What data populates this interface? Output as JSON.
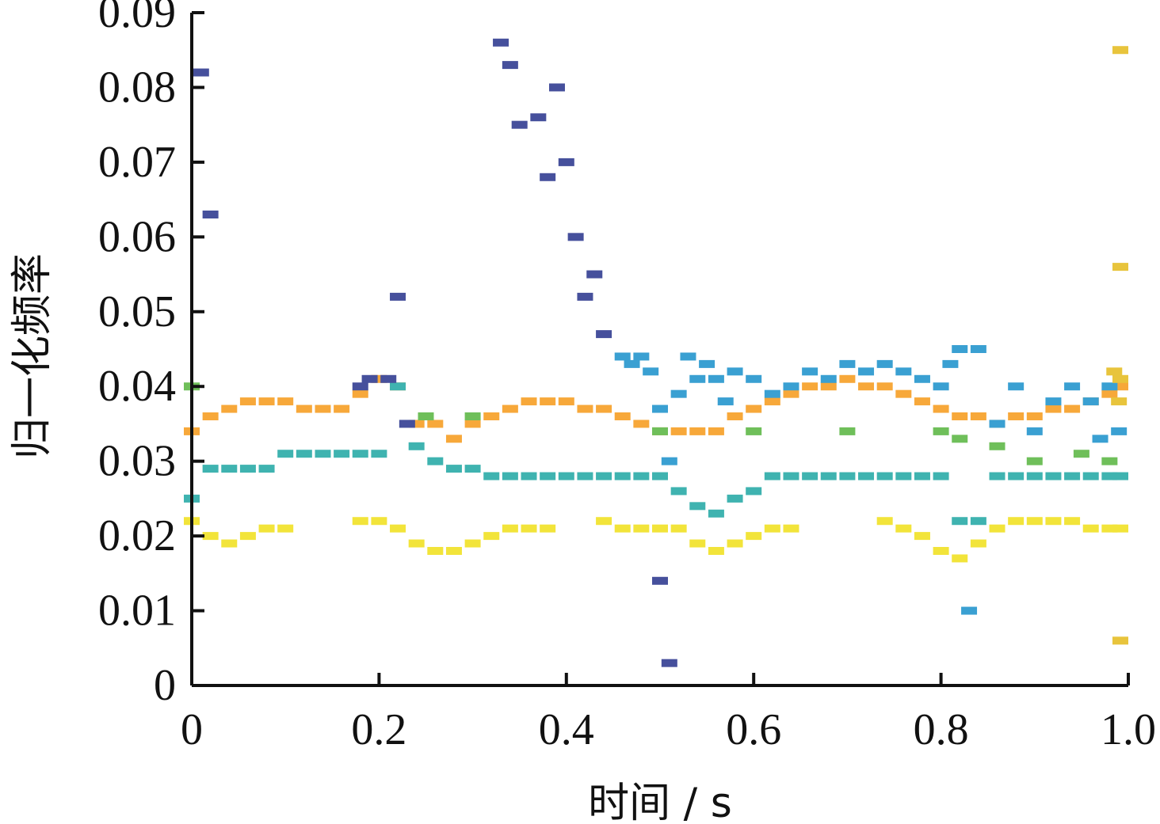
{
  "chart_data": {
    "type": "scatter",
    "title": "",
    "xlabel": "时间 / s",
    "ylabel": "归一化频率",
    "xlim": [
      0,
      1.0
    ],
    "ylim": [
      0,
      0.09
    ],
    "grid": false,
    "legend": "none",
    "x_ticks": [
      {
        "value": 0,
        "label": "0"
      },
      {
        "value": 0.2,
        "label": "0.2"
      },
      {
        "value": 0.4,
        "label": "0.4"
      },
      {
        "value": 0.6,
        "label": "0.6"
      },
      {
        "value": 0.8,
        "label": "0.8"
      },
      {
        "value": 1.0,
        "label": "1.0"
      }
    ],
    "y_ticks": [
      {
        "value": 0,
        "label": "0"
      },
      {
        "value": 0.01,
        "label": "0.01"
      },
      {
        "value": 0.02,
        "label": "0.02"
      },
      {
        "value": 0.03,
        "label": "0.03"
      },
      {
        "value": 0.04,
        "label": "0.04"
      },
      {
        "value": 0.05,
        "label": "0.05"
      },
      {
        "value": 0.06,
        "label": "0.06"
      },
      {
        "value": 0.07,
        "label": "0.07"
      },
      {
        "value": 0.08,
        "label": "0.08"
      },
      {
        "value": 0.09,
        "label": "0.09"
      }
    ],
    "colors": {
      "yellow": "#f2e43a",
      "orange": "#f7a83a",
      "olive": "#b9ae2e",
      "green": "#6fbf5a",
      "teal": "#3fb3b0",
      "blue": "#3aa0d2",
      "navy": "#46509c"
    },
    "series": [
      {
        "color": "#f7a83a",
        "points": [
          [
            0.0,
            0.034
          ],
          [
            0.02,
            0.036
          ],
          [
            0.04,
            0.037
          ],
          [
            0.06,
            0.038
          ],
          [
            0.08,
            0.038
          ],
          [
            0.1,
            0.038
          ],
          [
            0.12,
            0.037
          ],
          [
            0.14,
            0.037
          ],
          [
            0.16,
            0.037
          ],
          [
            0.18,
            0.039
          ],
          [
            0.2,
            0.041
          ],
          [
            0.22,
            0.04
          ],
          [
            0.24,
            0.035
          ],
          [
            0.26,
            0.035
          ],
          [
            0.28,
            0.033
          ],
          [
            0.3,
            0.035
          ],
          [
            0.32,
            0.036
          ],
          [
            0.34,
            0.037
          ],
          [
            0.36,
            0.038
          ],
          [
            0.38,
            0.038
          ],
          [
            0.4,
            0.038
          ],
          [
            0.42,
            0.037
          ],
          [
            0.44,
            0.037
          ],
          [
            0.46,
            0.036
          ],
          [
            0.48,
            0.035
          ],
          [
            0.5,
            0.034
          ],
          [
            0.52,
            0.034
          ],
          [
            0.54,
            0.034
          ],
          [
            0.56,
            0.034
          ],
          [
            0.58,
            0.036
          ],
          [
            0.6,
            0.037
          ],
          [
            0.62,
            0.038
          ],
          [
            0.64,
            0.039
          ],
          [
            0.66,
            0.04
          ],
          [
            0.68,
            0.04
          ],
          [
            0.7,
            0.041
          ],
          [
            0.72,
            0.04
          ],
          [
            0.74,
            0.04
          ],
          [
            0.76,
            0.039
          ],
          [
            0.78,
            0.038
          ],
          [
            0.8,
            0.037
          ],
          [
            0.82,
            0.036
          ],
          [
            0.84,
            0.036
          ],
          [
            0.86,
            0.035
          ],
          [
            0.88,
            0.036
          ],
          [
            0.9,
            0.036
          ],
          [
            0.92,
            0.037
          ],
          [
            0.94,
            0.037
          ],
          [
            0.96,
            0.038
          ],
          [
            0.98,
            0.039
          ],
          [
            1.0,
            0.04
          ]
        ]
      },
      {
        "color": "#3fb3b0",
        "points": [
          [
            0.0,
            0.025
          ],
          [
            0.02,
            0.029
          ],
          [
            0.04,
            0.029
          ],
          [
            0.06,
            0.029
          ],
          [
            0.08,
            0.029
          ],
          [
            0.1,
            0.031
          ],
          [
            0.12,
            0.031
          ],
          [
            0.14,
            0.031
          ],
          [
            0.16,
            0.031
          ],
          [
            0.18,
            0.031
          ],
          [
            0.2,
            0.031
          ],
          [
            0.22,
            0.04
          ],
          [
            0.24,
            0.032
          ],
          [
            0.26,
            0.03
          ],
          [
            0.28,
            0.029
          ],
          [
            0.3,
            0.029
          ],
          [
            0.32,
            0.028
          ],
          [
            0.34,
            0.028
          ],
          [
            0.36,
            0.028
          ],
          [
            0.38,
            0.028
          ],
          [
            0.4,
            0.028
          ],
          [
            0.42,
            0.028
          ],
          [
            0.44,
            0.028
          ],
          [
            0.46,
            0.028
          ],
          [
            0.48,
            0.028
          ],
          [
            0.5,
            0.028
          ],
          [
            0.52,
            0.026
          ],
          [
            0.54,
            0.024
          ],
          [
            0.56,
            0.023
          ],
          [
            0.58,
            0.025
          ],
          [
            0.6,
            0.026
          ],
          [
            0.62,
            0.028
          ],
          [
            0.64,
            0.028
          ],
          [
            0.66,
            0.028
          ],
          [
            0.68,
            0.028
          ],
          [
            0.7,
            0.028
          ],
          [
            0.72,
            0.028
          ],
          [
            0.74,
            0.028
          ],
          [
            0.76,
            0.028
          ],
          [
            0.78,
            0.028
          ],
          [
            0.8,
            0.028
          ],
          [
            0.82,
            0.022
          ],
          [
            0.84,
            0.022
          ],
          [
            0.86,
            0.028
          ],
          [
            0.88,
            0.028
          ],
          [
            0.9,
            0.028
          ],
          [
            0.92,
            0.028
          ],
          [
            0.94,
            0.028
          ],
          [
            0.96,
            0.028
          ],
          [
            0.98,
            0.028
          ],
          [
            1.0,
            0.028
          ]
        ]
      },
      {
        "color": "#f2e43a",
        "points": [
          [
            0.0,
            0.022
          ],
          [
            0.02,
            0.02
          ],
          [
            0.04,
            0.019
          ],
          [
            0.06,
            0.02
          ],
          [
            0.08,
            0.021
          ],
          [
            0.1,
            0.021
          ],
          [
            0.18,
            0.022
          ],
          [
            0.2,
            0.022
          ],
          [
            0.22,
            0.021
          ],
          [
            0.24,
            0.019
          ],
          [
            0.26,
            0.018
          ],
          [
            0.28,
            0.018
          ],
          [
            0.3,
            0.019
          ],
          [
            0.32,
            0.02
          ],
          [
            0.34,
            0.021
          ],
          [
            0.36,
            0.021
          ],
          [
            0.38,
            0.021
          ],
          [
            0.44,
            0.022
          ],
          [
            0.46,
            0.021
          ],
          [
            0.48,
            0.021
          ],
          [
            0.5,
            0.021
          ],
          [
            0.52,
            0.021
          ],
          [
            0.54,
            0.019
          ],
          [
            0.56,
            0.018
          ],
          [
            0.58,
            0.019
          ],
          [
            0.6,
            0.02
          ],
          [
            0.62,
            0.021
          ],
          [
            0.64,
            0.021
          ],
          [
            0.74,
            0.022
          ],
          [
            0.76,
            0.021
          ],
          [
            0.78,
            0.02
          ],
          [
            0.8,
            0.018
          ],
          [
            0.82,
            0.017
          ],
          [
            0.84,
            0.019
          ],
          [
            0.86,
            0.021
          ],
          [
            0.88,
            0.022
          ],
          [
            0.9,
            0.022
          ],
          [
            0.92,
            0.022
          ],
          [
            0.94,
            0.022
          ],
          [
            0.96,
            0.021
          ],
          [
            0.98,
            0.021
          ],
          [
            1.0,
            0.021
          ]
        ]
      },
      {
        "color": "#6fbf5a",
        "points": [
          [
            0.0,
            0.04
          ],
          [
            0.25,
            0.036
          ],
          [
            0.3,
            0.036
          ],
          [
            0.5,
            0.034
          ],
          [
            0.6,
            0.034
          ],
          [
            0.7,
            0.034
          ],
          [
            0.8,
            0.034
          ],
          [
            0.82,
            0.033
          ],
          [
            0.86,
            0.032
          ],
          [
            0.9,
            0.03
          ],
          [
            0.95,
            0.031
          ],
          [
            0.98,
            0.03
          ]
        ]
      },
      {
        "color": "#46509c",
        "points": [
          [
            0.01,
            0.082
          ],
          [
            0.02,
            0.063
          ],
          [
            0.18,
            0.04
          ],
          [
            0.19,
            0.041
          ],
          [
            0.21,
            0.041
          ],
          [
            0.22,
            0.052
          ],
          [
            0.23,
            0.035
          ],
          [
            0.33,
            0.086
          ],
          [
            0.34,
            0.083
          ],
          [
            0.35,
            0.075
          ],
          [
            0.37,
            0.076
          ],
          [
            0.38,
            0.068
          ],
          [
            0.39,
            0.08
          ],
          [
            0.4,
            0.07
          ],
          [
            0.41,
            0.06
          ],
          [
            0.42,
            0.052
          ],
          [
            0.43,
            0.055
          ],
          [
            0.44,
            0.047
          ],
          [
            0.5,
            0.014
          ],
          [
            0.51,
            0.003
          ]
        ]
      },
      {
        "color": "#3aa0d2",
        "points": [
          [
            0.46,
            0.044
          ],
          [
            0.47,
            0.043
          ],
          [
            0.48,
            0.044
          ],
          [
            0.49,
            0.042
          ],
          [
            0.5,
            0.037
          ],
          [
            0.51,
            0.03
          ],
          [
            0.52,
            0.039
          ],
          [
            0.53,
            0.044
          ],
          [
            0.54,
            0.041
          ],
          [
            0.55,
            0.043
          ],
          [
            0.56,
            0.041
          ],
          [
            0.57,
            0.038
          ],
          [
            0.58,
            0.042
          ],
          [
            0.6,
            0.041
          ],
          [
            0.62,
            0.039
          ],
          [
            0.64,
            0.04
          ],
          [
            0.66,
            0.042
          ],
          [
            0.68,
            0.041
          ],
          [
            0.7,
            0.043
          ],
          [
            0.72,
            0.042
          ],
          [
            0.74,
            0.043
          ],
          [
            0.76,
            0.042
          ],
          [
            0.78,
            0.041
          ],
          [
            0.8,
            0.04
          ],
          [
            0.81,
            0.043
          ],
          [
            0.82,
            0.045
          ],
          [
            0.83,
            0.01
          ],
          [
            0.84,
            0.045
          ],
          [
            0.86,
            0.035
          ],
          [
            0.88,
            0.04
          ],
          [
            0.9,
            0.034
          ],
          [
            0.92,
            0.038
          ],
          [
            0.94,
            0.04
          ],
          [
            0.96,
            0.038
          ],
          [
            0.97,
            0.033
          ],
          [
            0.98,
            0.04
          ],
          [
            0.99,
            0.034
          ]
        ]
      },
      {
        "color": "#e8c43c",
        "points": [
          [
            1.0,
            0.085
          ],
          [
            1.0,
            0.056
          ],
          [
            1.0,
            0.006
          ],
          [
            0.995,
            0.041
          ],
          [
            0.99,
            0.038
          ],
          [
            0.985,
            0.042
          ]
        ]
      }
    ]
  }
}
